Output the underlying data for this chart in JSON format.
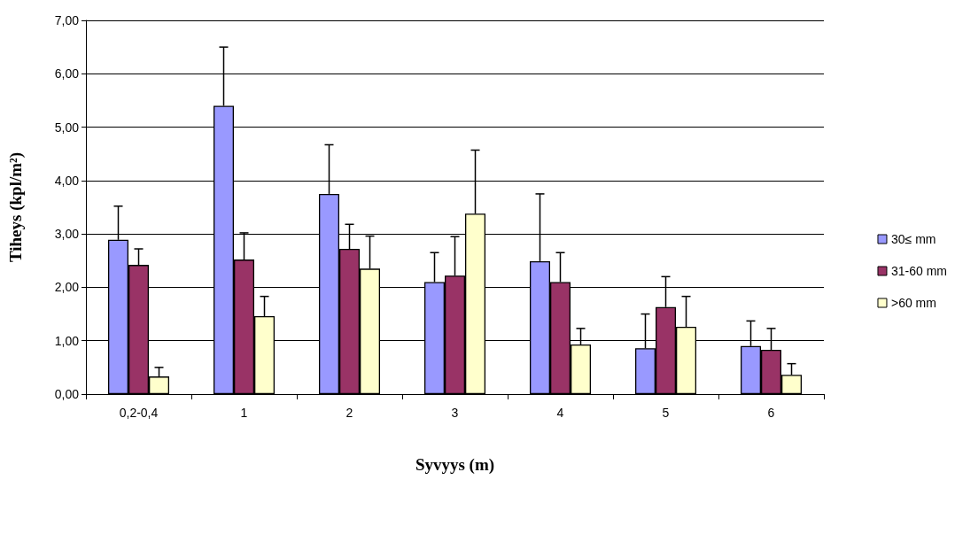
{
  "chart_data": {
    "type": "bar",
    "xlabel": "Syvyys (m)",
    "ylabel": "Tiheys (kpl/m²)",
    "categories": [
      "0,2-0,4",
      "1",
      "2",
      "3",
      "4",
      "5",
      "6"
    ],
    "series": [
      {
        "name": "30≤ mm",
        "color": "#9999ff",
        "values": [
          2.89,
          5.4,
          3.75,
          2.1,
          2.49,
          0.86,
          0.9
        ],
        "errors": [
          [
            2.89,
            3.52
          ],
          [
            5.4,
            6.5
          ],
          [
            3.75,
            4.67
          ],
          [
            2.1,
            2.65
          ],
          [
            2.49,
            3.75
          ],
          [
            0.86,
            1.5
          ],
          [
            0.9,
            1.37
          ]
        ]
      },
      {
        "name": "31-60 mm",
        "color": "#993366",
        "values": [
          2.42,
          2.52,
          2.72,
          2.22,
          2.1,
          1.63,
          0.83
        ],
        "errors": [
          [
            2.42,
            2.72
          ],
          [
            2.52,
            3.02
          ],
          [
            2.72,
            3.18
          ],
          [
            2.22,
            2.95
          ],
          [
            2.1,
            2.65
          ],
          [
            1.63,
            2.2
          ],
          [
            0.83,
            1.23
          ]
        ]
      },
      {
        "name": ">60 mm",
        "color": "#ffffcc",
        "values": [
          0.33,
          1.46,
          2.35,
          3.38,
          0.93,
          1.26,
          0.36
        ],
        "errors": [
          [
            0.33,
            0.5
          ],
          [
            1.46,
            1.83
          ],
          [
            2.35,
            2.96
          ],
          [
            3.38,
            4.57
          ],
          [
            0.93,
            1.23
          ],
          [
            1.26,
            1.83
          ],
          [
            0.36,
            0.57
          ]
        ]
      }
    ],
    "ylim": [
      0,
      7
    ],
    "yticks": [
      {
        "value": 0,
        "label": "0,00"
      },
      {
        "value": 1,
        "label": "1,00"
      },
      {
        "value": 2,
        "label": "2,00"
      },
      {
        "value": 3,
        "label": "3,00"
      },
      {
        "value": 4,
        "label": "4,00"
      },
      {
        "value": 5,
        "label": "5,00"
      },
      {
        "value": 6,
        "label": "6,00"
      },
      {
        "value": 7,
        "label": "7,00"
      }
    ],
    "grid": "y",
    "legend": "right"
  }
}
